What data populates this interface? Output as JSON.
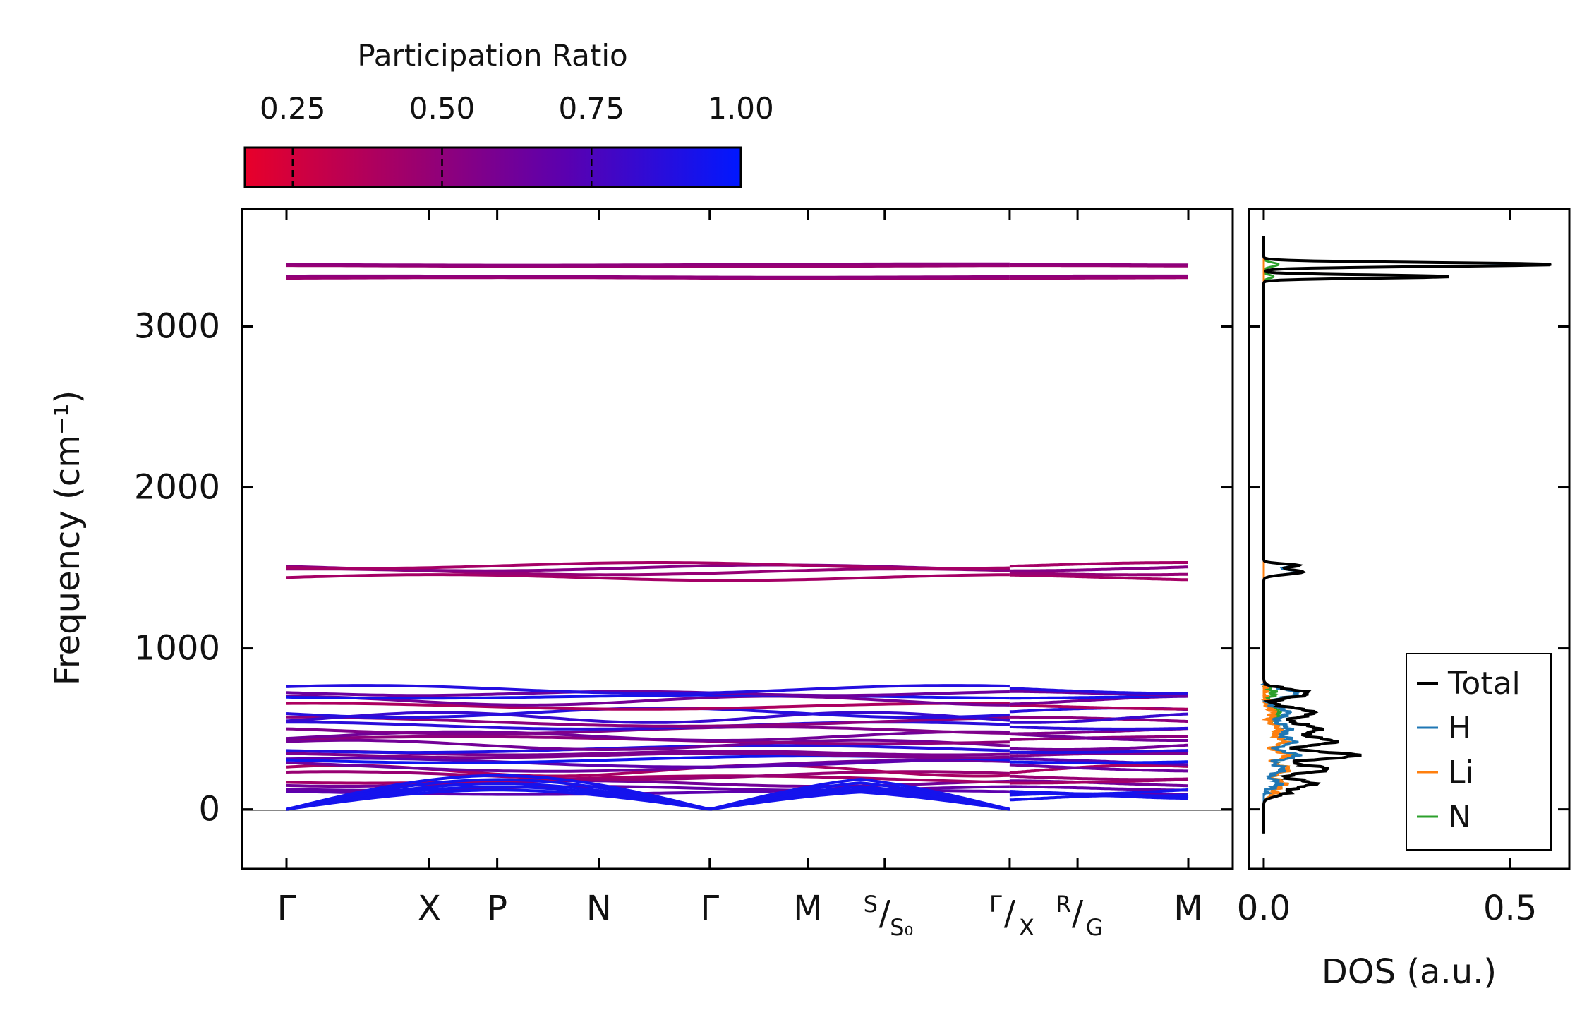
{
  "colorbar": {
    "label": "Participation Ratio",
    "ticks": [
      "0.25",
      "0.50",
      "0.75",
      "1.00"
    ],
    "tick_values": [
      0.25,
      0.5,
      0.75,
      1.0
    ],
    "range": [
      0.17,
      1.0
    ],
    "color_low": "#e8002a",
    "color_mid": "#8a0078",
    "color_high": "#0018ff"
  },
  "chart_data": [
    {
      "type": "line",
      "name": "phonon-band-structure",
      "ylabel": "Frequency (cm⁻¹)",
      "ylim": [
        -370,
        3730
      ],
      "yticks": [
        0,
        1000,
        2000,
        3000
      ],
      "ytick_labels": [
        "0",
        "1000",
        "2000",
        "3000"
      ],
      "xticks": [
        {
          "label": "Γ",
          "pos": 0.0
        },
        {
          "label": "X",
          "pos": 0.8
        },
        {
          "label": "P",
          "pos": 1.18
        },
        {
          "label": "N",
          "pos": 1.75
        },
        {
          "label": "Γ",
          "pos": 2.37
        },
        {
          "label": "M",
          "pos": 2.92
        },
        {
          "label": "S",
          "sub": "S₀",
          "pos": 3.35
        },
        {
          "label": "Γ",
          "sub": "X",
          "pos": 4.05
        },
        {
          "label": "R",
          "sub": "G",
          "pos": 4.43
        },
        {
          "label": "M",
          "pos": 5.05
        }
      ],
      "segments": [
        [
          0.0,
          4.05
        ],
        [
          4.05,
          5.05
        ]
      ],
      "band_groups": {
        "nh_stretch": [
          3300,
          3310,
          3375,
          3385
        ],
        "nh2_bend": [
          1440,
          1475,
          1500,
          1515
        ],
        "optical_low": [
          105,
          130,
          160,
          185,
          210,
          240,
          270,
          290,
          310,
          335,
          350,
          375,
          400,
          430,
          455,
          490,
          520,
          545,
          570,
          600,
          640,
          675,
          700,
          720,
          745
        ],
        "acoustic_top": [
          120,
          140,
          160,
          185,
          210
        ]
      }
    },
    {
      "type": "line",
      "name": "phonon-dos",
      "xlabel": "DOS (a.u.)",
      "xlim": [
        -0.03,
        0.62
      ],
      "xticks": [
        0.0,
        0.5
      ],
      "xtick_labels": [
        "0.0",
        "0.5"
      ],
      "series": [
        {
          "name": "Total",
          "color": "#000000",
          "peaks": [
            [
              3385,
              0.59,
              12
            ],
            [
              3310,
              0.38,
              10
            ],
            [
              1475,
              0.08,
              15
            ],
            [
              1515,
              0.07,
              10
            ],
            [
              720,
              0.09,
              25
            ],
            [
              600,
              0.1,
              30
            ],
            [
              500,
              0.11,
              30
            ],
            [
              420,
              0.14,
              25
            ],
            [
              335,
              0.19,
              22
            ],
            [
              250,
              0.13,
              25
            ],
            [
              160,
              0.1,
              25
            ],
            [
              100,
              0.04,
              20
            ]
          ]
        },
        {
          "name": "H",
          "color": "#1f77b4",
          "peaks": [
            [
              3385,
              0.55,
              12
            ],
            [
              3310,
              0.35,
              10
            ],
            [
              1475,
              0.07,
              15
            ],
            [
              1515,
              0.06,
              10
            ],
            [
              720,
              0.07,
              25
            ],
            [
              600,
              0.05,
              30
            ],
            [
              500,
              0.05,
              30
            ],
            [
              420,
              0.06,
              25
            ],
            [
              335,
              0.07,
              22
            ],
            [
              250,
              0.04,
              25
            ],
            [
              160,
              0.03,
              25
            ]
          ]
        },
        {
          "name": "Li",
          "color": "#ff7f0e",
          "peaks": [
            [
              600,
              0.02,
              30
            ],
            [
              500,
              0.03,
              30
            ],
            [
              420,
              0.04,
              25
            ],
            [
              335,
              0.05,
              22
            ],
            [
              250,
              0.05,
              25
            ],
            [
              160,
              0.04,
              25
            ],
            [
              100,
              0.02,
              20
            ]
          ]
        },
        {
          "name": "N",
          "color": "#2ca02c",
          "peaks": [
            [
              3385,
              0.03,
              12
            ],
            [
              3310,
              0.02,
              10
            ],
            [
              720,
              0.02,
              25
            ],
            [
              600,
              0.03,
              30
            ],
            [
              500,
              0.03,
              30
            ],
            [
              420,
              0.04,
              25
            ],
            [
              335,
              0.06,
              22
            ],
            [
              250,
              0.05,
              25
            ],
            [
              160,
              0.04,
              25
            ],
            [
              100,
              0.02,
              20
            ]
          ]
        }
      ],
      "legend": {
        "position": "bottom-right",
        "entries": [
          "Total",
          "H",
          "Li",
          "N"
        ]
      }
    }
  ]
}
